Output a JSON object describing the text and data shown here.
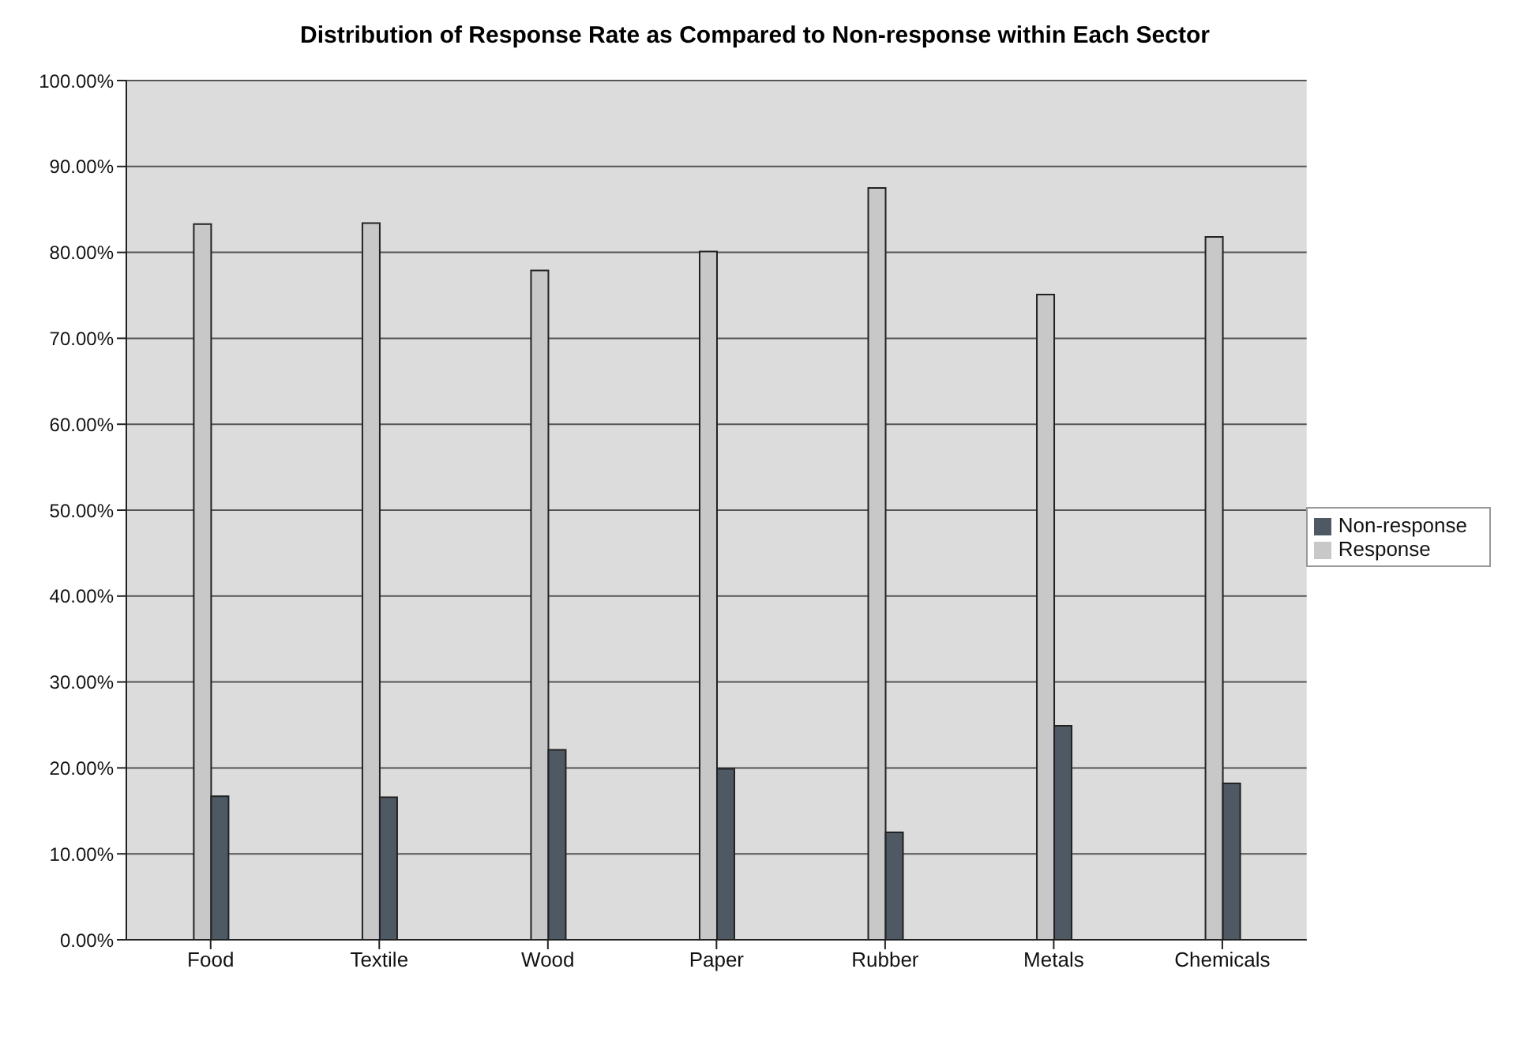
{
  "chart_data": {
    "type": "bar",
    "title": "Distribution of Response Rate as Compared to Non-response within Each Sector",
    "categories": [
      "Food",
      "Textile",
      "Wood",
      "Paper",
      "Rubber",
      "Metals",
      "Chemicals"
    ],
    "series": [
      {
        "name": "Response",
        "color": "#c8c8c8",
        "values": [
          83.3,
          83.4,
          77.9,
          80.1,
          87.5,
          75.1,
          81.8
        ]
      },
      {
        "name": "Non-response",
        "color": "#4e5963",
        "values": [
          16.7,
          16.6,
          22.1,
          19.9,
          12.5,
          24.9,
          18.2
        ]
      }
    ],
    "ylim": [
      0,
      100
    ],
    "yticks": [
      {
        "value": 0,
        "label": "0.00%"
      },
      {
        "value": 10,
        "label": "10.00%"
      },
      {
        "value": 20,
        "label": "20.00%"
      },
      {
        "value": 30,
        "label": "30.00%"
      },
      {
        "value": 40,
        "label": "40.00%"
      },
      {
        "value": 50,
        "label": "50.00%"
      },
      {
        "value": 60,
        "label": "60.00%"
      },
      {
        "value": 70,
        "label": "70.00%"
      },
      {
        "value": 80,
        "label": "80.00%"
      },
      {
        "value": 90,
        "label": "90.00%"
      },
      {
        "value": 100,
        "label": "100.00%"
      }
    ],
    "grid": "y",
    "legend": "right"
  }
}
